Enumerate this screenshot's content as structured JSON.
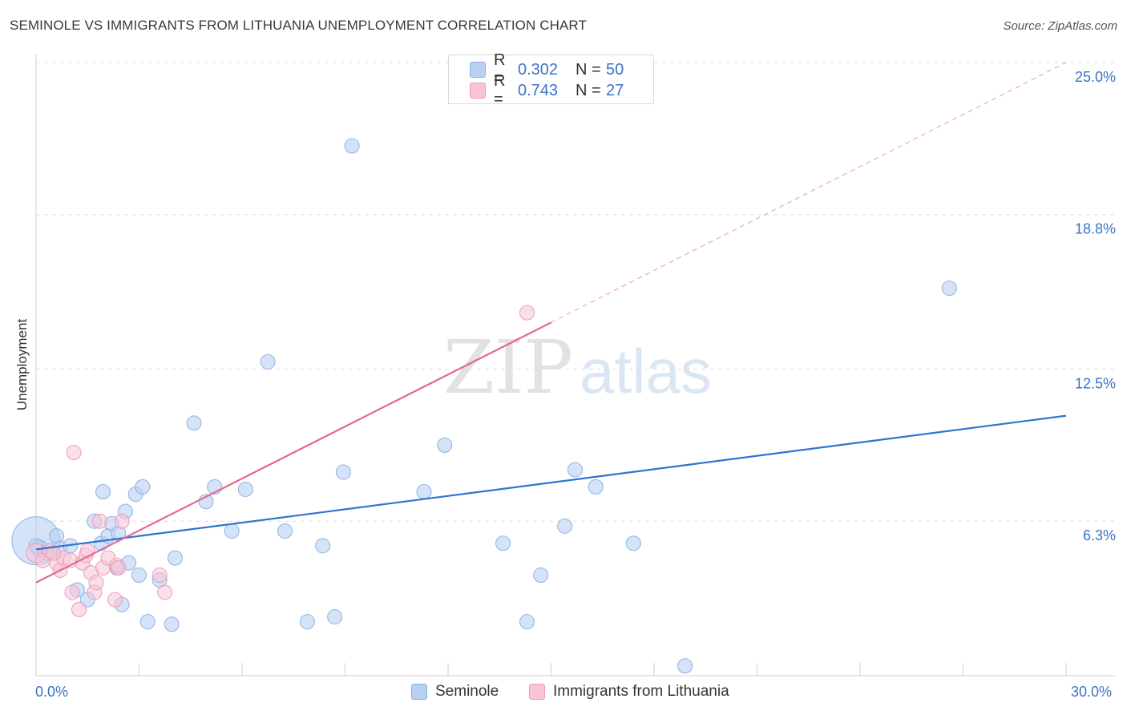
{
  "title": "SEMINOLE VS IMMIGRANTS FROM LITHUANIA UNEMPLOYMENT CORRELATION CHART",
  "source": "Source: ZipAtlas.com",
  "watermark": {
    "zip": "ZIP",
    "atlas": "atlas"
  },
  "legend": {
    "r_label": "R =",
    "n_label": "N =",
    "rows": [
      {
        "r": "0.302",
        "n": "50"
      },
      {
        "r": "0.743",
        "n": "27"
      }
    ]
  },
  "bottom_legend": {
    "seminole": "Seminole",
    "lithuania": "Immigrants from Lithuania"
  },
  "x_axis": {
    "min_label": "0.0%",
    "max_label": "30.0%"
  },
  "colors": {
    "seminole_fill": "#b8d0f1",
    "seminole_stroke": "#8fb1e3",
    "seminole_line": "#2f74d0",
    "lithuania_fill": "#f8c4d6",
    "lithuania_stroke": "#ee9ab8",
    "lithuania_line": "#e5688f",
    "axis_text": "#3b72c7",
    "grid": "#dddddd"
  },
  "chart_data": {
    "type": "scatter",
    "title": "SEMINOLE VS IMMIGRANTS FROM LITHUANIA UNEMPLOYMENT CORRELATION CHART",
    "xlabel": "",
    "ylabel": "Unemployment",
    "xlim": [
      0,
      30
    ],
    "ylim": [
      0,
      25
    ],
    "y_ticks": [
      {
        "value": 6.3,
        "label": "6.3%"
      },
      {
        "value": 12.5,
        "label": "12.5%"
      },
      {
        "value": 18.8,
        "label": "18.8%"
      },
      {
        "value": 25.0,
        "label": "25.0%"
      }
    ],
    "x_tick_values": [
      0,
      3,
      6,
      9,
      12,
      15,
      18,
      21,
      24,
      27,
      30
    ],
    "grid": true,
    "series": [
      {
        "name": "Seminole",
        "r": 0.302,
        "n": 50,
        "trend": {
          "x": [
            0,
            30
          ],
          "y": [
            5.15,
            10.6
          ]
        },
        "points": [
          [
            0.0,
            5.5,
            30
          ],
          [
            0.1,
            5.2,
            10
          ],
          [
            0.3,
            5.0,
            9
          ],
          [
            0.4,
            5.1,
            9
          ],
          [
            0.6,
            5.7,
            9
          ],
          [
            0.7,
            5.2,
            9
          ],
          [
            1.0,
            5.3,
            9
          ],
          [
            1.2,
            3.5,
            9
          ],
          [
            1.5,
            3.1,
            9
          ],
          [
            1.7,
            6.3,
            9
          ],
          [
            1.9,
            5.4,
            9
          ],
          [
            1.95,
            7.5,
            9
          ],
          [
            2.1,
            5.7,
            9
          ],
          [
            2.2,
            6.2,
            9
          ],
          [
            2.35,
            4.4,
            9
          ],
          [
            2.4,
            5.8,
            9
          ],
          [
            2.5,
            2.9,
            9
          ],
          [
            2.6,
            6.7,
            9
          ],
          [
            2.7,
            4.6,
            9
          ],
          [
            2.9,
            7.4,
            9
          ],
          [
            3.0,
            4.1,
            9
          ],
          [
            3.1,
            7.7,
            9
          ],
          [
            3.25,
            2.2,
            9
          ],
          [
            3.6,
            3.9,
            9
          ],
          [
            3.95,
            2.1,
            9
          ],
          [
            4.05,
            4.8,
            9
          ],
          [
            4.6,
            10.3,
            9
          ],
          [
            4.95,
            7.1,
            9
          ],
          [
            5.2,
            7.7,
            9
          ],
          [
            5.7,
            5.9,
            9
          ],
          [
            6.1,
            7.6,
            9
          ],
          [
            6.75,
            12.8,
            9
          ],
          [
            7.25,
            5.9,
            9
          ],
          [
            7.9,
            2.2,
            9
          ],
          [
            8.35,
            5.3,
            9
          ],
          [
            8.7,
            2.4,
            9
          ],
          [
            8.95,
            8.3,
            9
          ],
          [
            9.2,
            21.6,
            9
          ],
          [
            11.3,
            7.5,
            9
          ],
          [
            11.9,
            9.4,
            9
          ],
          [
            13.6,
            5.4,
            9
          ],
          [
            14.3,
            2.2,
            9
          ],
          [
            14.7,
            4.1,
            9
          ],
          [
            15.4,
            6.1,
            9
          ],
          [
            15.7,
            8.4,
            9
          ],
          [
            16.3,
            7.7,
            9
          ],
          [
            17.4,
            5.4,
            9
          ],
          [
            18.9,
            0.4,
            9
          ],
          [
            26.6,
            15.8,
            9
          ],
          [
            0.0,
            5.3,
            9
          ]
        ]
      },
      {
        "name": "Immigrants from Lithuania",
        "r": 0.743,
        "n": 27,
        "trend": {
          "x": [
            0,
            30
          ],
          "y": [
            3.8,
            25.0
          ],
          "solid_until_x": 15.0
        },
        "points": [
          [
            0.0,
            5.0,
            12
          ],
          [
            0.2,
            4.7,
            9
          ],
          [
            0.4,
            5.1,
            9
          ],
          [
            0.6,
            4.6,
            9
          ],
          [
            0.7,
            4.3,
            9
          ],
          [
            0.8,
            4.8,
            9
          ],
          [
            1.0,
            4.7,
            9
          ],
          [
            1.05,
            3.4,
            9
          ],
          [
            1.1,
            9.1,
            9
          ],
          [
            1.25,
            2.7,
            9
          ],
          [
            1.35,
            4.6,
            9
          ],
          [
            1.45,
            4.9,
            9
          ],
          [
            1.5,
            5.1,
            9
          ],
          [
            1.6,
            4.2,
            9
          ],
          [
            1.7,
            3.4,
            9
          ],
          [
            1.75,
            3.8,
            9
          ],
          [
            1.85,
            6.3,
            9
          ],
          [
            1.95,
            4.4,
            9
          ],
          [
            2.1,
            4.8,
            9
          ],
          [
            2.3,
            3.1,
            9
          ],
          [
            2.35,
            4.5,
            9
          ],
          [
            2.4,
            4.4,
            9
          ],
          [
            2.5,
            6.3,
            9
          ],
          [
            3.6,
            4.1,
            9
          ],
          [
            3.75,
            3.4,
            9
          ],
          [
            14.3,
            14.8,
            9
          ],
          [
            0.5,
            5.0,
            9
          ]
        ]
      }
    ]
  }
}
